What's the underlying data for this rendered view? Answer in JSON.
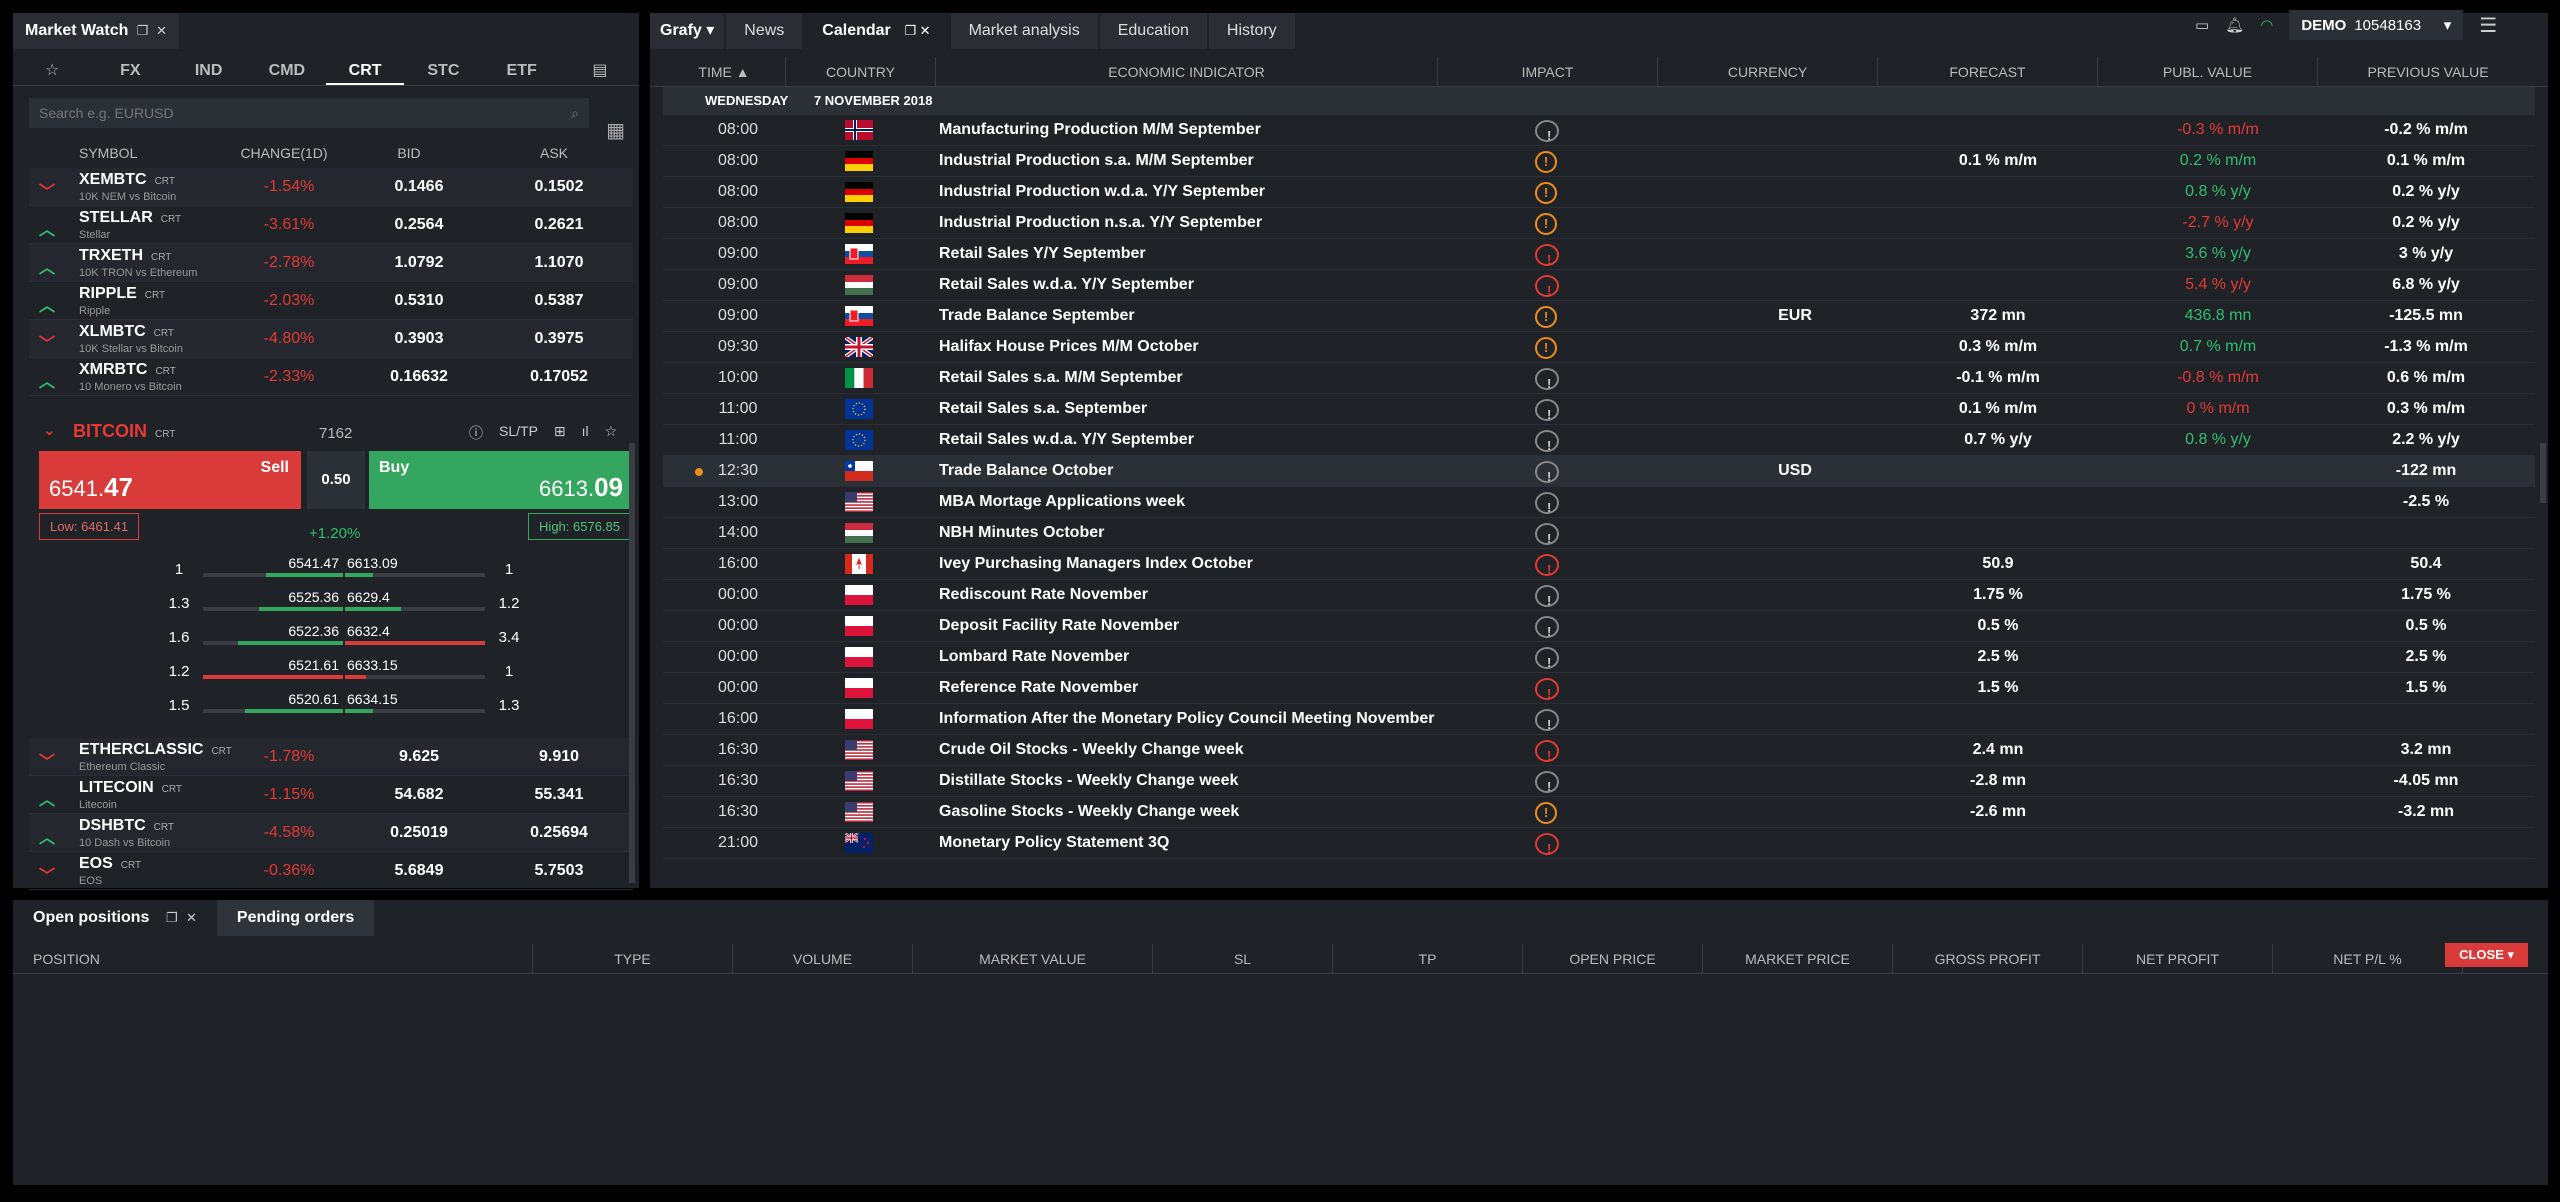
{
  "market_watch": {
    "title": "Market Watch",
    "categories": [
      "☆",
      "FX",
      "IND",
      "CMD",
      "CRT",
      "STC",
      "ETF",
      "▤"
    ],
    "active_category": "CRT",
    "search_placeholder": "Search e.g. EURUSD",
    "columns": [
      "SYMBOL",
      "CHANGE(1D)",
      "BID",
      "ASK"
    ],
    "top_rows": [
      {
        "dir": "down",
        "symbol": "XEMBTC",
        "tag": "CRT",
        "sub": "10K NEM vs Bitcoin",
        "change": "-1.54%",
        "bid": "0.1466",
        "ask": "0.1502"
      },
      {
        "dir": "up",
        "symbol": "STELLAR",
        "tag": "CRT",
        "sub": "Stellar",
        "change": "-3.61%",
        "bid": "0.2564",
        "ask": "0.2621"
      },
      {
        "dir": "up",
        "symbol": "TRXETH",
        "tag": "CRT",
        "sub": "10K TRON vs Ethereum",
        "change": "-2.78%",
        "bid": "1.0792",
        "ask": "1.1070"
      },
      {
        "dir": "up",
        "symbol": "RIPPLE",
        "tag": "CRT",
        "sub": "Ripple",
        "change": "-2.03%",
        "bid": "0.5310",
        "ask": "0.5387"
      },
      {
        "dir": "down",
        "symbol": "XLMBTC",
        "tag": "CRT",
        "sub": "10K Stellar vs Bitcoin",
        "change": "-4.80%",
        "bid": "0.3903",
        "ask": "0.3975"
      },
      {
        "dir": "up",
        "symbol": "XMRBTC",
        "tag": "CRT",
        "sub": "10 Monero vs Bitcoin",
        "change": "-2.33%",
        "bid": "0.16632",
        "ask": "0.17052"
      }
    ],
    "bitcoin": {
      "name": "BITCOIN",
      "tag": "CRT",
      "spread": "7162",
      "sltp": "SL/TP",
      "sell_label": "Sell",
      "sell_price_main": "6541.",
      "sell_price_big": "47",
      "buy_label": "Buy",
      "buy_price_main": "6613.",
      "buy_price_big": "09",
      "lot": "0.50",
      "low": "Low: 6461.41",
      "high": "High: 6576.85",
      "change": "+1.20%",
      "depth": [
        {
          "vl": "1",
          "bid": "6541.47",
          "ask": "6613.09",
          "vr": "1",
          "lfill": 0.55,
          "lcolor": "#35a65f",
          "rfill": 0.2,
          "rcolor": "#35a65f"
        },
        {
          "vl": "1.3",
          "bid": "6525.36",
          "ask": "6629.4",
          "vr": "1.2",
          "lfill": 0.6,
          "lcolor": "#35a65f",
          "rfill": 0.4,
          "rcolor": "#35a65f"
        },
        {
          "vl": "1.6",
          "bid": "6522.36",
          "ask": "6632.4",
          "vr": "3.4",
          "lfill": 0.75,
          "lcolor": "#35a65f",
          "rfill": 1.0,
          "rcolor": "#d93b3b"
        },
        {
          "vl": "1.2",
          "bid": "6521.61",
          "ask": "6633.15",
          "vr": "1",
          "lfill": 1.0,
          "lcolor": "#d93b3b",
          "rfill": 0.15,
          "rcolor": "#d93b3b"
        },
        {
          "vl": "1.5",
          "bid": "6520.61",
          "ask": "6634.15",
          "vr": "1.3",
          "lfill": 0.7,
          "lcolor": "#35a65f",
          "rfill": 0.2,
          "rcolor": "#35a65f"
        }
      ]
    },
    "bottom_rows": [
      {
        "dir": "down",
        "symbol": "ETHERCLASSIC",
        "tag": "CRT",
        "sub": "Ethereum Classic",
        "change": "-1.78%",
        "bid": "9.625",
        "ask": "9.910"
      },
      {
        "dir": "up",
        "symbol": "LITECOIN",
        "tag": "CRT",
        "sub": "Litecoin",
        "change": "-1.15%",
        "bid": "54.682",
        "ask": "55.341"
      },
      {
        "dir": "up",
        "symbol": "DSHBTC",
        "tag": "CRT",
        "sub": "10 Dash vs Bitcoin",
        "change": "-4.58%",
        "bid": "0.25019",
        "ask": "0.25694"
      },
      {
        "dir": "down",
        "symbol": "EOS",
        "tag": "CRT",
        "sub": "EOS",
        "change": "-0.36%",
        "bid": "5.6849",
        "ask": "5.7503"
      }
    ]
  },
  "calendar": {
    "tabs": [
      "Grafy ▾",
      "News",
      "Calendar",
      "Market analysis",
      "Education",
      "History"
    ],
    "active_tab": "Calendar",
    "columns": [
      "TIME ▲",
      "COUNTRY",
      "ECONOMIC INDICATOR",
      "IMPACT",
      "CURRENCY",
      "FORECAST",
      "PUBL. VALUE",
      "PREVIOUS VALUE"
    ],
    "day": "WEDNESDAY",
    "date": "7 NOVEMBER 2018",
    "rows": [
      {
        "time": "08:00",
        "flag": "no",
        "ind": "Manufacturing Production M/M September",
        "impact": "low",
        "cur": "",
        "fc": "",
        "pv": "-0.3 % m/m",
        "pvc": "r",
        "prev": "-0.2 % m/m"
      },
      {
        "time": "08:00",
        "flag": "de",
        "ind": "Industrial Production s.a. M/M September",
        "impact": "med",
        "cur": "",
        "fc": "0.1 % m/m",
        "pv": "0.2 % m/m",
        "pvc": "g",
        "prev": "0.1 % m/m"
      },
      {
        "time": "08:00",
        "flag": "de",
        "ind": "Industrial Production w.d.a. Y/Y September",
        "impact": "med",
        "cur": "",
        "fc": "",
        "pv": "0.8 % y/y",
        "pvc": "g",
        "prev": "0.2 % y/y"
      },
      {
        "time": "08:00",
        "flag": "de",
        "ind": "Industrial Production n.s.a. Y/Y September",
        "impact": "med",
        "cur": "",
        "fc": "",
        "pv": "-2.7 % y/y",
        "pvc": "r",
        "prev": "0.2 % y/y"
      },
      {
        "time": "09:00",
        "flag": "sk",
        "ind": "Retail Sales Y/Y September",
        "impact": "high",
        "cur": "",
        "fc": "",
        "pv": "3.6 % y/y",
        "pvc": "g",
        "prev": "3 % y/y"
      },
      {
        "time": "09:00",
        "flag": "hu",
        "ind": "Retail Sales w.d.a. Y/Y September",
        "impact": "high",
        "cur": "",
        "fc": "",
        "pv": "5.4 % y/y",
        "pvc": "r",
        "prev": "6.8 % y/y"
      },
      {
        "time": "09:00",
        "flag": "sk",
        "ind": "Trade Balance September",
        "impact": "med",
        "cur": "EUR",
        "fc": "372 mn",
        "pv": "436.8 mn",
        "pvc": "g",
        "prev": "-125.5 mn"
      },
      {
        "time": "09:30",
        "flag": "gb",
        "ind": "Halifax House Prices M/M October",
        "impact": "med",
        "cur": "",
        "fc": "0.3 % m/m",
        "pv": "0.7 % m/m",
        "pvc": "g",
        "prev": "-1.3 % m/m"
      },
      {
        "time": "10:00",
        "flag": "it",
        "ind": "Retail Sales s.a. M/M September",
        "impact": "low",
        "cur": "",
        "fc": "-0.1 % m/m",
        "pv": "-0.8 % m/m",
        "pvc": "r",
        "prev": "0.6 % m/m"
      },
      {
        "time": "11:00",
        "flag": "eu",
        "ind": "Retail Sales s.a. September",
        "impact": "low",
        "cur": "",
        "fc": "0.1 % m/m",
        "pv": "0 % m/m",
        "pvc": "r",
        "prev": "0.3 % m/m"
      },
      {
        "time": "11:00",
        "flag": "eu",
        "ind": "Retail Sales w.d.a. Y/Y September",
        "impact": "low",
        "cur": "",
        "fc": "0.7 % y/y",
        "pv": "0.8 % y/y",
        "pvc": "g",
        "prev": "2.2 % y/y"
      },
      {
        "time": "12:30",
        "flag": "cl",
        "ind": "Trade Balance October",
        "impact": "low",
        "cur": "USD",
        "fc": "",
        "pv": "",
        "pvc": "g",
        "prev": "-122 mn",
        "hl": true
      },
      {
        "time": "13:00",
        "flag": "us",
        "ind": "MBA Mortage Applications week",
        "impact": "low",
        "cur": "",
        "fc": "",
        "pv": "",
        "pvc": "g",
        "prev": "-2.5 %"
      },
      {
        "time": "14:00",
        "flag": "hu",
        "ind": "NBH Minutes October",
        "impact": "low",
        "cur": "",
        "fc": "",
        "pv": "",
        "pvc": "g",
        "prev": ""
      },
      {
        "time": "16:00",
        "flag": "ca",
        "ind": "Ivey Purchasing Managers Index October",
        "impact": "high",
        "cur": "",
        "fc": "50.9",
        "pv": "",
        "pvc": "g",
        "prev": "50.4"
      },
      {
        "time": "00:00",
        "flag": "pl",
        "ind": "Rediscount Rate November",
        "impact": "low",
        "cur": "",
        "fc": "1.75 %",
        "pv": "",
        "pvc": "g",
        "prev": "1.75 %"
      },
      {
        "time": "00:00",
        "flag": "pl",
        "ind": "Deposit Facility Rate November",
        "impact": "low",
        "cur": "",
        "fc": "0.5 %",
        "pv": "",
        "pvc": "g",
        "prev": "0.5 %"
      },
      {
        "time": "00:00",
        "flag": "pl",
        "ind": "Lombard Rate November",
        "impact": "low",
        "cur": "",
        "fc": "2.5 %",
        "pv": "",
        "pvc": "g",
        "prev": "2.5 %"
      },
      {
        "time": "00:00",
        "flag": "pl",
        "ind": "Reference Rate November",
        "impact": "high",
        "cur": "",
        "fc": "1.5 %",
        "pv": "",
        "pvc": "g",
        "prev": "1.5 %"
      },
      {
        "time": "16:00",
        "flag": "pl",
        "ind": "Information After the Monetary Policy Council Meeting November",
        "impact": "low",
        "cur": "",
        "fc": "",
        "pv": "",
        "pvc": "g",
        "prev": ""
      },
      {
        "time": "16:30",
        "flag": "us",
        "ind": "Crude Oil Stocks - Weekly Change week",
        "impact": "high",
        "cur": "",
        "fc": "2.4 mn",
        "pv": "",
        "pvc": "g",
        "prev": "3.2 mn"
      },
      {
        "time": "16:30",
        "flag": "us",
        "ind": "Distillate Stocks - Weekly Change week",
        "impact": "low",
        "cur": "",
        "fc": "-2.8 mn",
        "pv": "",
        "pvc": "g",
        "prev": "-4.05 mn"
      },
      {
        "time": "16:30",
        "flag": "us",
        "ind": "Gasoline Stocks - Weekly Change week",
        "impact": "med",
        "cur": "",
        "fc": "-2.6 mn",
        "pv": "",
        "pvc": "g",
        "prev": "-3.2 mn"
      },
      {
        "time": "21:00",
        "flag": "nz",
        "ind": "Monetary Policy Statement 3Q",
        "impact": "high",
        "cur": "",
        "fc": "",
        "pv": "",
        "pvc": "g",
        "prev": ""
      }
    ]
  },
  "account": {
    "mode": "DEMO",
    "number": "10548163"
  },
  "positions": {
    "tabs": [
      "Open positions",
      "Pending orders"
    ],
    "columns": [
      "POSITION",
      "TYPE",
      "VOLUME",
      "MARKET VALUE",
      "SL",
      "TP",
      "OPEN PRICE",
      "MARKET PRICE",
      "GROSS PROFIT",
      "NET PROFIT",
      "NET P/L %"
    ],
    "close_label": "CLOSE ▾"
  }
}
